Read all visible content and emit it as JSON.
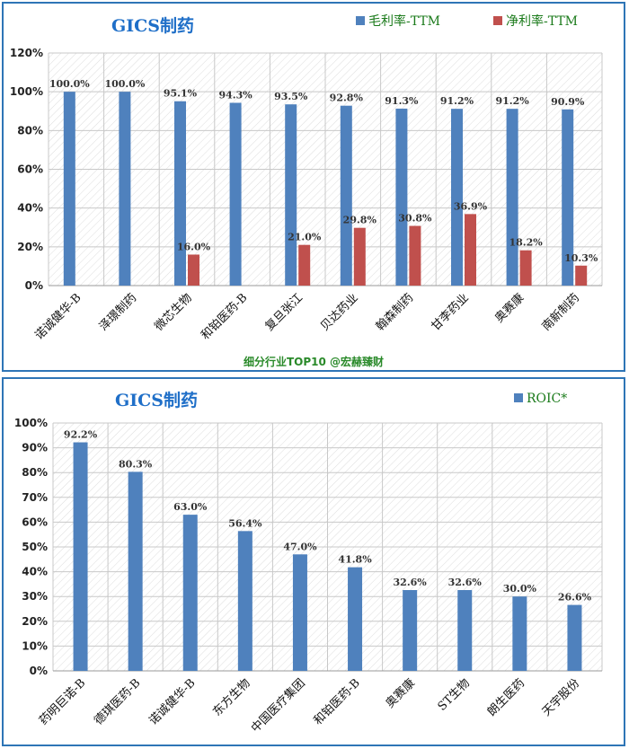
{
  "chart_data": [
    {
      "type": "bar",
      "title": "GICS制药",
      "categories": [
        "诺诚健华-B",
        "泽璟制药",
        "微芯生物",
        "和铂医药-B",
        "复旦张江",
        "贝达药业",
        "翰森制药",
        "甘李药业",
        "奥赛康",
        "南新制药"
      ],
      "series": [
        {
          "name": "毛利率-TTM",
          "color": "#4f81bd",
          "values": [
            100.0,
            100.0,
            95.1,
            94.3,
            93.5,
            92.8,
            91.3,
            91.2,
            91.2,
            90.9
          ],
          "labels": [
            "100.0%",
            "100.0%",
            "95.1%",
            "94.3%",
            "93.5%",
            "92.8%",
            "91.3%",
            "91.2%",
            "91.2%",
            "90.9%"
          ]
        },
        {
          "name": "净利率-TTM",
          "color": "#c0504d",
          "values": [
            null,
            null,
            16.0,
            null,
            21.0,
            29.8,
            30.8,
            36.9,
            18.2,
            10.3
          ],
          "labels": [
            "",
            "",
            "16.0%",
            "",
            "21.0%",
            "29.8%",
            "30.8%",
            "36.9%",
            "18.2%",
            "10.3%"
          ]
        }
      ],
      "ylim": [
        0,
        120
      ],
      "yticks": [
        "0%",
        "20%",
        "40%",
        "60%",
        "80%",
        "100%",
        "120%"
      ],
      "legend": "top-right",
      "grid": true,
      "footer": "细分行业TOP10 @宏赫臻财"
    },
    {
      "type": "bar",
      "title": "GICS制药",
      "categories": [
        "药明巨诺-B",
        "德琪医药-B",
        "诺诚健华-B",
        "东方生物",
        "中国医疗集团",
        "和铂医药-B",
        "奥赛康",
        "ST生物",
        "朗生医药",
        "天宇股份"
      ],
      "series": [
        {
          "name": "ROIC*",
          "color": "#4f81bd",
          "values": [
            92.2,
            80.3,
            63.0,
            56.4,
            47.0,
            41.8,
            32.6,
            32.6,
            30.0,
            26.6
          ],
          "labels": [
            "92.2%",
            "80.3%",
            "63.0%",
            "56.4%",
            "47.0%",
            "41.8%",
            "32.6%",
            "32.6%",
            "30.0%",
            "26.6%"
          ]
        }
      ],
      "ylim": [
        0,
        100
      ],
      "yticks": [
        "0%",
        "10%",
        "20%",
        "30%",
        "40%",
        "50%",
        "60%",
        "70%",
        "80%",
        "90%",
        "100%"
      ],
      "legend": "top-right",
      "grid": true
    }
  ]
}
